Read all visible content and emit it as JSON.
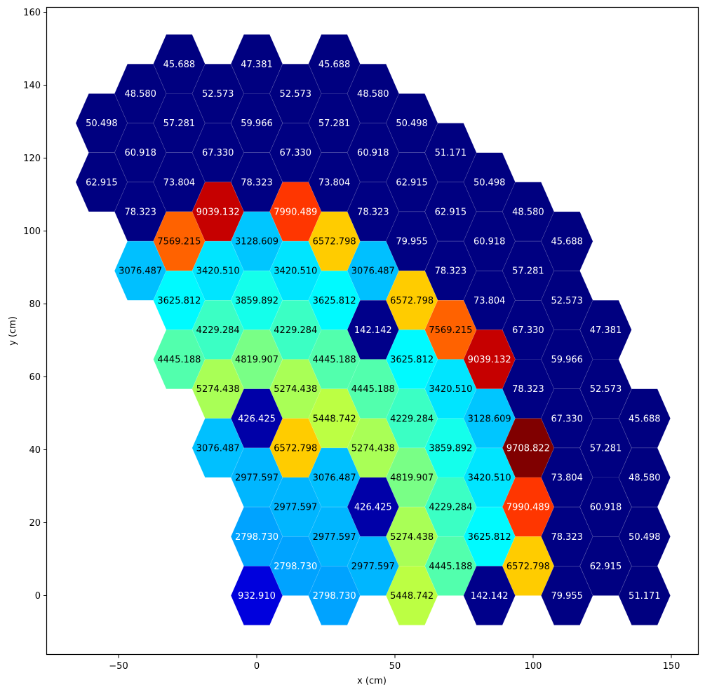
{
  "chart_data": {
    "type": "heatmap",
    "subtype": "hexbin",
    "title": "",
    "xlabel": "x (cm)",
    "ylabel": "y (cm)",
    "xlim": [
      -75.5,
      160
    ],
    "ylim": [
      -16,
      161.5
    ],
    "xticks": [
      -50,
      0,
      50,
      100,
      150
    ],
    "yticks": [
      0,
      20,
      40,
      60,
      80,
      100,
      120,
      140,
      160
    ],
    "grid": false,
    "colormap": "jet",
    "color_range": [
      45.688,
      9708.822
    ],
    "hex_orientation": "flat-top",
    "hex_col_spacing_cm": 14.03,
    "hex_row_spacing_cm": 8.1,
    "hex_radius_cm": 9.35,
    "cells": [
      {
        "x": -28.06,
        "y": 145.8,
        "value": "45.688"
      },
      {
        "x": 0,
        "y": 145.8,
        "value": "47.381"
      },
      {
        "x": 28.06,
        "y": 145.8,
        "value": "45.688"
      },
      {
        "x": -42.09,
        "y": 137.7,
        "value": "48.580"
      },
      {
        "x": -14.03,
        "y": 137.7,
        "value": "52.573"
      },
      {
        "x": 14.03,
        "y": 137.7,
        "value": "52.573"
      },
      {
        "x": 42.09,
        "y": 137.7,
        "value": "48.580"
      },
      {
        "x": -56.12,
        "y": 129.6,
        "value": "50.498"
      },
      {
        "x": -28.06,
        "y": 129.6,
        "value": "57.281"
      },
      {
        "x": 0,
        "y": 129.6,
        "value": "59.966"
      },
      {
        "x": 28.06,
        "y": 129.6,
        "value": "57.281"
      },
      {
        "x": 56.12,
        "y": 129.6,
        "value": "50.498"
      },
      {
        "x": -42.09,
        "y": 121.5,
        "value": "60.918"
      },
      {
        "x": -14.03,
        "y": 121.5,
        "value": "67.330"
      },
      {
        "x": 14.03,
        "y": 121.5,
        "value": "67.330"
      },
      {
        "x": 42.09,
        "y": 121.5,
        "value": "60.918"
      },
      {
        "x": 70.15,
        "y": 121.5,
        "value": "51.171"
      },
      {
        "x": -56.12,
        "y": 113.4,
        "value": "62.915"
      },
      {
        "x": -28.06,
        "y": 113.4,
        "value": "73.804"
      },
      {
        "x": 0,
        "y": 113.4,
        "value": "78.323"
      },
      {
        "x": 28.06,
        "y": 113.4,
        "value": "73.804"
      },
      {
        "x": 56.12,
        "y": 113.4,
        "value": "62.915"
      },
      {
        "x": 84.18,
        "y": 113.4,
        "value": "50.498"
      },
      {
        "x": -42.09,
        "y": 105.3,
        "value": "78.323"
      },
      {
        "x": -14.03,
        "y": 105.3,
        "value": "9039.132"
      },
      {
        "x": 14.03,
        "y": 105.3,
        "value": "7990.489"
      },
      {
        "x": 42.09,
        "y": 105.3,
        "value": "78.323"
      },
      {
        "x": 70.15,
        "y": 105.3,
        "value": "62.915"
      },
      {
        "x": 98.21,
        "y": 105.3,
        "value": "48.580"
      },
      {
        "x": -28.06,
        "y": 97.2,
        "value": "7569.215"
      },
      {
        "x": 0,
        "y": 97.2,
        "value": "3128.609"
      },
      {
        "x": 28.06,
        "y": 97.2,
        "value": "6572.798"
      },
      {
        "x": 56.12,
        "y": 97.2,
        "value": "79.955"
      },
      {
        "x": 84.18,
        "y": 97.2,
        "value": "60.918"
      },
      {
        "x": 112.24,
        "y": 97.2,
        "value": "45.688"
      },
      {
        "x": -42.09,
        "y": 89.1,
        "value": "3076.487"
      },
      {
        "x": -14.03,
        "y": 89.1,
        "value": "3420.510"
      },
      {
        "x": 14.03,
        "y": 89.1,
        "value": "3420.510"
      },
      {
        "x": 42.09,
        "y": 89.1,
        "value": "3076.487"
      },
      {
        "x": 70.15,
        "y": 89.1,
        "value": "78.323"
      },
      {
        "x": 98.21,
        "y": 89.1,
        "value": "57.281"
      },
      {
        "x": -28.06,
        "y": 81.0,
        "value": "3625.812"
      },
      {
        "x": 0,
        "y": 81.0,
        "value": "3859.892"
      },
      {
        "x": 28.06,
        "y": 81.0,
        "value": "3625.812"
      },
      {
        "x": 56.12,
        "y": 81.0,
        "value": "6572.798"
      },
      {
        "x": 84.18,
        "y": 81.0,
        "value": "73.804"
      },
      {
        "x": 112.24,
        "y": 81.0,
        "value": "52.573"
      },
      {
        "x": -14.03,
        "y": 72.9,
        "value": "4229.284"
      },
      {
        "x": 14.03,
        "y": 72.9,
        "value": "4229.284"
      },
      {
        "x": 42.09,
        "y": 72.9,
        "value": "142.142"
      },
      {
        "x": 70.15,
        "y": 72.9,
        "value": "7569.215"
      },
      {
        "x": 98.21,
        "y": 72.9,
        "value": "67.330"
      },
      {
        "x": 126.27,
        "y": 72.9,
        "value": "47.381"
      },
      {
        "x": -28.06,
        "y": 64.8,
        "value": "4445.188"
      },
      {
        "x": 0,
        "y": 64.8,
        "value": "4819.907"
      },
      {
        "x": 28.06,
        "y": 64.8,
        "value": "4445.188"
      },
      {
        "x": 56.12,
        "y": 64.8,
        "value": "3625.812"
      },
      {
        "x": 84.18,
        "y": 64.8,
        "value": "9039.132"
      },
      {
        "x": 112.24,
        "y": 64.8,
        "value": "59.966"
      },
      {
        "x": -14.03,
        "y": 56.7,
        "value": "5274.438"
      },
      {
        "x": 14.03,
        "y": 56.7,
        "value": "5274.438"
      },
      {
        "x": 42.09,
        "y": 56.7,
        "value": "4445.188"
      },
      {
        "x": 70.15,
        "y": 56.7,
        "value": "3420.510"
      },
      {
        "x": 98.21,
        "y": 56.7,
        "value": "78.323"
      },
      {
        "x": 126.27,
        "y": 56.7,
        "value": "52.573"
      },
      {
        "x": 0,
        "y": 48.6,
        "value": "426.425"
      },
      {
        "x": 28.06,
        "y": 48.6,
        "value": "5448.742"
      },
      {
        "x": 56.12,
        "y": 48.6,
        "value": "4229.284"
      },
      {
        "x": 84.18,
        "y": 48.6,
        "value": "3128.609"
      },
      {
        "x": 112.24,
        "y": 48.6,
        "value": "67.330"
      },
      {
        "x": 140.3,
        "y": 48.6,
        "value": "45.688"
      },
      {
        "x": -14.03,
        "y": 40.5,
        "value": "3076.487"
      },
      {
        "x": 14.03,
        "y": 40.5,
        "value": "6572.798"
      },
      {
        "x": 42.09,
        "y": 40.5,
        "value": "5274.438"
      },
      {
        "x": 70.15,
        "y": 40.5,
        "value": "3859.892"
      },
      {
        "x": 98.21,
        "y": 40.5,
        "value": "9708.822"
      },
      {
        "x": 126.27,
        "y": 40.5,
        "value": "57.281"
      },
      {
        "x": 0,
        "y": 32.4,
        "value": "2977.597"
      },
      {
        "x": 28.06,
        "y": 32.4,
        "value": "3076.487"
      },
      {
        "x": 56.12,
        "y": 32.4,
        "value": "4819.907"
      },
      {
        "x": 84.18,
        "y": 32.4,
        "value": "3420.510"
      },
      {
        "x": 112.24,
        "y": 32.4,
        "value": "73.804"
      },
      {
        "x": 140.3,
        "y": 32.4,
        "value": "48.580"
      },
      {
        "x": 14.03,
        "y": 24.3,
        "value": "2977.597"
      },
      {
        "x": 42.09,
        "y": 24.3,
        "value": "426.425"
      },
      {
        "x": 70.15,
        "y": 24.3,
        "value": "4229.284"
      },
      {
        "x": 98.21,
        "y": 24.3,
        "value": "7990.489"
      },
      {
        "x": 126.27,
        "y": 24.3,
        "value": "60.918"
      },
      {
        "x": 0,
        "y": 16.2,
        "value": "2798.730"
      },
      {
        "x": 28.06,
        "y": 16.2,
        "value": "2977.597"
      },
      {
        "x": 56.12,
        "y": 16.2,
        "value": "5274.438"
      },
      {
        "x": 84.18,
        "y": 16.2,
        "value": "3625.812"
      },
      {
        "x": 112.24,
        "y": 16.2,
        "value": "78.323"
      },
      {
        "x": 140.3,
        "y": 16.2,
        "value": "50.498"
      },
      {
        "x": 14.03,
        "y": 8.1,
        "value": "2798.730"
      },
      {
        "x": 42.09,
        "y": 8.1,
        "value": "2977.597"
      },
      {
        "x": 70.15,
        "y": 8.1,
        "value": "4445.188"
      },
      {
        "x": 98.21,
        "y": 8.1,
        "value": "6572.798"
      },
      {
        "x": 126.27,
        "y": 8.1,
        "value": "62.915"
      },
      {
        "x": 0,
        "y": 0,
        "value": "932.910"
      },
      {
        "x": 28.06,
        "y": 0,
        "value": "2798.730"
      },
      {
        "x": 56.12,
        "y": 0,
        "value": "5448.742"
      },
      {
        "x": 84.18,
        "y": 0,
        "value": "142.142"
      },
      {
        "x": 112.24,
        "y": 0,
        "value": "79.955"
      },
      {
        "x": 140.3,
        "y": 0,
        "value": "51.171"
      }
    ]
  },
  "colors": {
    "background": "#ffffff",
    "axis": "#000000",
    "label_light": "#ffffff",
    "label_dark": "#000000"
  }
}
